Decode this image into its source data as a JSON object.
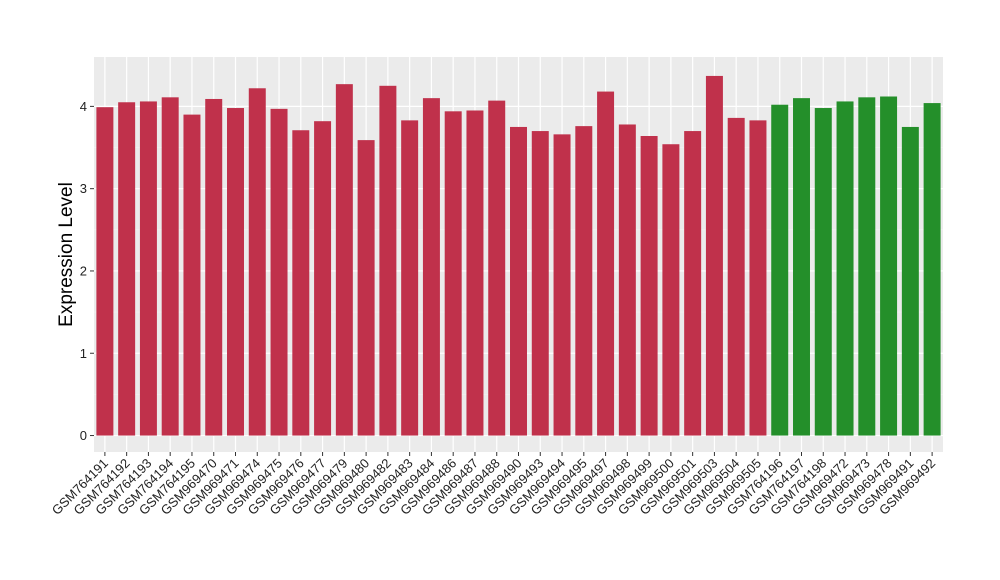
{
  "chart_data": {
    "type": "bar",
    "title": "",
    "xlabel": "",
    "ylabel": "Expression Level",
    "ylim": [
      -0.2,
      4.6
    ],
    "yticks": [
      0,
      1,
      2,
      3,
      4
    ],
    "grid": true,
    "legend": "none",
    "panel_background": "#ebebeb",
    "categories": [
      "GSM764191",
      "GSM764192",
      "GSM764193",
      "GSM764194",
      "GSM764195",
      "GSM969470",
      "GSM969471",
      "GSM969474",
      "GSM969475",
      "GSM969476",
      "GSM969477",
      "GSM969479",
      "GSM969480",
      "GSM969482",
      "GSM969483",
      "GSM969484",
      "GSM969486",
      "GSM969487",
      "GSM969488",
      "GSM969490",
      "GSM969493",
      "GSM969494",
      "GSM969495",
      "GSM969497",
      "GSM969498",
      "GSM969499",
      "GSM969500",
      "GSM969501",
      "GSM969503",
      "GSM969504",
      "GSM969505",
      "GSM764196",
      "GSM764197",
      "GSM764198",
      "GSM969472",
      "GSM969473",
      "GSM969478",
      "GSM969491",
      "GSM969492"
    ],
    "values": [
      3.99,
      4.05,
      4.06,
      4.11,
      3.9,
      4.09,
      3.98,
      4.22,
      3.97,
      3.71,
      3.82,
      4.27,
      3.59,
      4.25,
      3.83,
      4.1,
      3.94,
      3.95,
      4.07,
      3.75,
      3.7,
      3.66,
      3.76,
      4.18,
      3.78,
      3.64,
      3.54,
      3.7,
      4.37,
      3.86,
      3.83,
      4.02,
      4.1,
      3.98,
      4.06,
      4.11,
      4.12,
      3.75,
      4.04
    ],
    "groups": [
      "a",
      "a",
      "a",
      "a",
      "a",
      "a",
      "a",
      "a",
      "a",
      "a",
      "a",
      "a",
      "a",
      "a",
      "a",
      "a",
      "a",
      "a",
      "a",
      "a",
      "a",
      "a",
      "a",
      "a",
      "a",
      "a",
      "a",
      "a",
      "a",
      "a",
      "a",
      "b",
      "b",
      "b",
      "b",
      "b",
      "b",
      "b",
      "b"
    ],
    "group_colors": {
      "a": "#c0314b",
      "b": "#248f2a"
    }
  }
}
